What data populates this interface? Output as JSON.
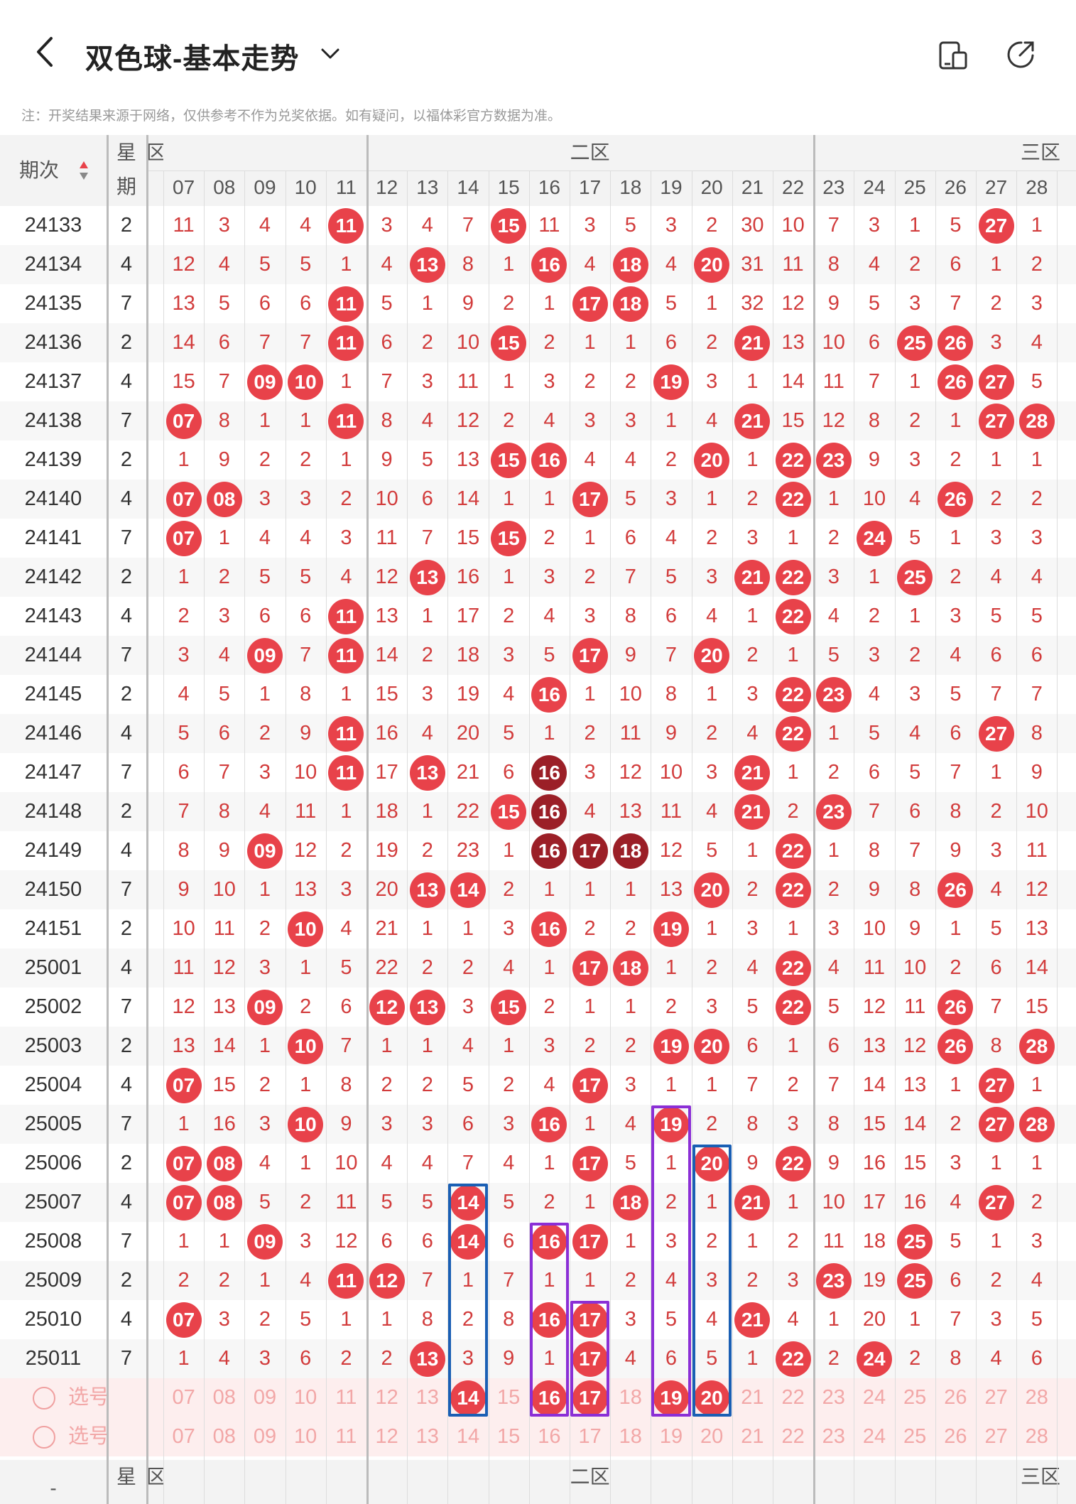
{
  "header": {
    "title": "双色球-基本走势",
    "note": "注：开奖结果来源于网络，仅供参考不作为兑奖依据。如有疑问，以福体彩官方数据为准。",
    "icons": [
      "back-arrow-icon",
      "chevron-down-icon",
      "device-split-icon",
      "share-icon"
    ]
  },
  "table": {
    "issue_header": "期次",
    "week_header": [
      "星",
      "期"
    ],
    "zone_labels": [
      "区",
      "二区",
      "三区"
    ],
    "columns": [
      "07",
      "08",
      "09",
      "10",
      "11",
      "12",
      "13",
      "14",
      "15",
      "16",
      "17",
      "18",
      "19",
      "20",
      "21",
      "22",
      "23",
      "24",
      "25",
      "26",
      "27",
      "28"
    ],
    "rows": [
      {
        "issue": "24133",
        "week": "2",
        "cells": [
          "11",
          "3",
          "4",
          "4",
          "11*",
          "3",
          "4",
          "7",
          "15*",
          "11",
          "3",
          "5",
          "3",
          "2",
          "30",
          "10",
          "7",
          "3",
          "1",
          "5",
          "27*",
          "1"
        ]
      },
      {
        "issue": "24134",
        "week": "4",
        "cells": [
          "12",
          "4",
          "5",
          "5",
          "1",
          "4",
          "13*",
          "8",
          "1",
          "16*",
          "4",
          "18*",
          "4",
          "20*",
          "31",
          "11",
          "8",
          "4",
          "2",
          "6",
          "1",
          "2"
        ]
      },
      {
        "issue": "24135",
        "week": "7",
        "cells": [
          "13",
          "5",
          "6",
          "6",
          "11*",
          "5",
          "1",
          "9",
          "2",
          "1",
          "17*",
          "18*",
          "5",
          "1",
          "32",
          "12",
          "9",
          "5",
          "3",
          "7",
          "2",
          "3"
        ]
      },
      {
        "issue": "24136",
        "week": "2",
        "cells": [
          "14",
          "6",
          "7",
          "7",
          "11*",
          "6",
          "2",
          "10",
          "15*",
          "2",
          "1",
          "1",
          "6",
          "2",
          "21*",
          "13",
          "10",
          "6",
          "25*",
          "26*",
          "3",
          "4"
        ]
      },
      {
        "issue": "24137",
        "week": "4",
        "cells": [
          "15",
          "7",
          "09*",
          "10*",
          "1",
          "7",
          "3",
          "11",
          "1",
          "3",
          "2",
          "2",
          "19*",
          "3",
          "1",
          "14",
          "11",
          "7",
          "1",
          "26*",
          "27*",
          "5"
        ]
      },
      {
        "issue": "24138",
        "week": "7",
        "cells": [
          "07*",
          "8",
          "1",
          "1",
          "11*",
          "8",
          "4",
          "12",
          "2",
          "4",
          "3",
          "3",
          "1",
          "4",
          "21*",
          "15",
          "12",
          "8",
          "2",
          "1",
          "27*",
          "28*"
        ]
      },
      {
        "issue": "24139",
        "week": "2",
        "cells": [
          "1",
          "9",
          "2",
          "2",
          "1",
          "9",
          "5",
          "13",
          "15*",
          "16*",
          "4",
          "4",
          "2",
          "20*",
          "1",
          "22*",
          "23*",
          "9",
          "3",
          "2",
          "1",
          "1"
        ]
      },
      {
        "issue": "24140",
        "week": "4",
        "cells": [
          "07*",
          "08*",
          "3",
          "3",
          "2",
          "10",
          "6",
          "14",
          "1",
          "1",
          "17*",
          "5",
          "3",
          "1",
          "2",
          "22*",
          "1",
          "10",
          "4",
          "26*",
          "2",
          "2"
        ]
      },
      {
        "issue": "24141",
        "week": "7",
        "cells": [
          "07*",
          "1",
          "4",
          "4",
          "3",
          "11",
          "7",
          "15",
          "15*",
          "2",
          "1",
          "6",
          "4",
          "2",
          "3",
          "1",
          "2",
          "24*",
          "5",
          "1",
          "3",
          "3"
        ]
      },
      {
        "issue": "24142",
        "week": "2",
        "cells": [
          "1",
          "2",
          "5",
          "5",
          "4",
          "12",
          "13*",
          "16",
          "1",
          "3",
          "2",
          "7",
          "5",
          "3",
          "21*",
          "22*",
          "3",
          "1",
          "25*",
          "2",
          "4",
          "4"
        ]
      },
      {
        "issue": "24143",
        "week": "4",
        "cells": [
          "2",
          "3",
          "6",
          "6",
          "11*",
          "13",
          "1",
          "17",
          "2",
          "4",
          "3",
          "8",
          "6",
          "4",
          "1",
          "22*",
          "4",
          "2",
          "1",
          "3",
          "5",
          "5"
        ]
      },
      {
        "issue": "24144",
        "week": "7",
        "cells": [
          "3",
          "4",
          "09*",
          "7",
          "11*",
          "14",
          "2",
          "18",
          "3",
          "5",
          "17*",
          "9",
          "7",
          "20*",
          "2",
          "1",
          "5",
          "3",
          "2",
          "4",
          "6",
          "6"
        ]
      },
      {
        "issue": "24145",
        "week": "2",
        "cells": [
          "4",
          "5",
          "1",
          "8",
          "1",
          "15",
          "3",
          "19",
          "4",
          "16*",
          "1",
          "10",
          "8",
          "1",
          "3",
          "22*",
          "23*",
          "4",
          "3",
          "5",
          "7",
          "7"
        ]
      },
      {
        "issue": "24146",
        "week": "4",
        "cells": [
          "5",
          "6",
          "2",
          "9",
          "11*",
          "16",
          "4",
          "20",
          "5",
          "1",
          "2",
          "11",
          "9",
          "2",
          "4",
          "22*",
          "1",
          "5",
          "4",
          "6",
          "27*",
          "8"
        ]
      },
      {
        "issue": "24147",
        "week": "7",
        "cells": [
          "6",
          "7",
          "3",
          "10",
          "11*",
          "17",
          "13*",
          "21",
          "6",
          "16!",
          "3",
          "12",
          "10",
          "3",
          "21*",
          "1",
          "2",
          "6",
          "5",
          "7",
          "1",
          "9"
        ]
      },
      {
        "issue": "24148",
        "week": "2",
        "cells": [
          "7",
          "8",
          "4",
          "11",
          "1",
          "18",
          "1",
          "22",
          "15*",
          "16!",
          "4",
          "13",
          "11",
          "4",
          "21*",
          "2",
          "23*",
          "7",
          "6",
          "8",
          "2",
          "10"
        ]
      },
      {
        "issue": "24149",
        "week": "4",
        "cells": [
          "8",
          "9",
          "09*",
          "12",
          "2",
          "19",
          "2",
          "23",
          "1",
          "16!",
          "17!",
          "18!",
          "12",
          "5",
          "1",
          "22*",
          "1",
          "8",
          "7",
          "9",
          "3",
          "11"
        ]
      },
      {
        "issue": "24150",
        "week": "7",
        "cells": [
          "9",
          "10",
          "1",
          "13",
          "3",
          "20",
          "13*",
          "14*",
          "2",
          "1",
          "1",
          "1",
          "13",
          "20*",
          "2",
          "22*",
          "2",
          "9",
          "8",
          "26*",
          "4",
          "12"
        ]
      },
      {
        "issue": "24151",
        "week": "2",
        "cells": [
          "10",
          "11",
          "2",
          "10*",
          "4",
          "21",
          "1",
          "1",
          "3",
          "16*",
          "2",
          "2",
          "19*",
          "1",
          "3",
          "1",
          "3",
          "10",
          "9",
          "1",
          "5",
          "13"
        ]
      },
      {
        "issue": "25001",
        "week": "4",
        "cells": [
          "11",
          "12",
          "3",
          "1",
          "5",
          "22",
          "2",
          "2",
          "4",
          "1",
          "17*",
          "18*",
          "1",
          "2",
          "4",
          "22*",
          "4",
          "11",
          "10",
          "2",
          "6",
          "14"
        ]
      },
      {
        "issue": "25002",
        "week": "7",
        "cells": [
          "12",
          "13",
          "09*",
          "2",
          "6",
          "12*",
          "13*",
          "3",
          "15*",
          "2",
          "1",
          "1",
          "2",
          "3",
          "5",
          "22*",
          "5",
          "12",
          "11",
          "26*",
          "7",
          "15"
        ]
      },
      {
        "issue": "25003",
        "week": "2",
        "cells": [
          "13",
          "14",
          "1",
          "10*",
          "7",
          "1",
          "1",
          "4",
          "1",
          "3",
          "2",
          "2",
          "19*",
          "20*",
          "6",
          "1",
          "6",
          "13",
          "12",
          "26*",
          "8",
          "28*"
        ]
      },
      {
        "issue": "25004",
        "week": "4",
        "cells": [
          "07*",
          "15",
          "2",
          "1",
          "8",
          "2",
          "2",
          "5",
          "2",
          "4",
          "17*",
          "3",
          "1",
          "1",
          "7",
          "2",
          "7",
          "14",
          "13",
          "1",
          "27*",
          "1"
        ]
      },
      {
        "issue": "25005",
        "week": "7",
        "cells": [
          "1",
          "16",
          "3",
          "10*",
          "9",
          "3",
          "3",
          "6",
          "3",
          "16*",
          "1",
          "4",
          "19*",
          "2",
          "8",
          "3",
          "8",
          "15",
          "14",
          "2",
          "27*",
          "28*"
        ]
      },
      {
        "issue": "25006",
        "week": "2",
        "cells": [
          "07*",
          "08*",
          "4",
          "1",
          "10",
          "4",
          "4",
          "7",
          "4",
          "1",
          "17*",
          "5",
          "1",
          "20*",
          "9",
          "22*",
          "9",
          "16",
          "15",
          "3",
          "1",
          "1"
        ]
      },
      {
        "issue": "25007",
        "week": "4",
        "cells": [
          "07*",
          "08*",
          "5",
          "2",
          "11",
          "5",
          "5",
          "14*",
          "5",
          "2",
          "1",
          "18*",
          "2",
          "1",
          "21*",
          "1",
          "10",
          "17",
          "16",
          "4",
          "27*",
          "2"
        ]
      },
      {
        "issue": "25008",
        "week": "7",
        "cells": [
          "1",
          "1",
          "09*",
          "3",
          "12",
          "6",
          "6",
          "14*",
          "6",
          "16*",
          "17*",
          "1",
          "3",
          "2",
          "1",
          "2",
          "11",
          "18",
          "25*",
          "5",
          "1",
          "3"
        ]
      },
      {
        "issue": "25009",
        "week": "2",
        "cells": [
          "2",
          "2",
          "1",
          "4",
          "11*",
          "12*",
          "7",
          "1",
          "7",
          "1",
          "1",
          "2",
          "4",
          "3",
          "2",
          "3",
          "23*",
          "19",
          "25*",
          "6",
          "2",
          "4"
        ]
      },
      {
        "issue": "25010",
        "week": "4",
        "cells": [
          "07*",
          "3",
          "2",
          "5",
          "1",
          "1",
          "8",
          "2",
          "8",
          "16*",
          "17*",
          "3",
          "5",
          "4",
          "21*",
          "4",
          "1",
          "20",
          "1",
          "7",
          "3",
          "5"
        ]
      },
      {
        "issue": "25011",
        "week": "7",
        "cells": [
          "1",
          "4",
          "3",
          "6",
          "2",
          "2",
          "13*",
          "3",
          "9",
          "1",
          "17*",
          "4",
          "6",
          "5",
          "1",
          "22*",
          "2",
          "24*",
          "2",
          "8",
          "4",
          "6"
        ]
      }
    ],
    "select_rows": [
      {
        "label": "选号",
        "cells": [
          "07",
          "08",
          "09",
          "10",
          "11",
          "12",
          "13",
          "14*",
          "15",
          "16*",
          "17*",
          "18",
          "19*",
          "20*",
          "21",
          "22",
          "23",
          "24",
          "25",
          "26",
          "27",
          "28"
        ]
      },
      {
        "label": "选号",
        "cells": [
          "07",
          "08",
          "09",
          "10",
          "11",
          "12",
          "13",
          "14",
          "15",
          "16",
          "17",
          "18",
          "19",
          "20",
          "21",
          "22",
          "23",
          "24",
          "25",
          "26",
          "27",
          "28"
        ]
      }
    ],
    "footer_week": "星",
    "footer_zone_labels": [
      "区",
      "二区",
      "三区"
    ],
    "footer_dash": "-"
  },
  "colors": {
    "ball": "#e8424a",
    "ball_dark": "#9b1f27",
    "text": "#d23c3c",
    "blue_box": "#1a5fb4",
    "purple_box": "#8b2fd6"
  }
}
